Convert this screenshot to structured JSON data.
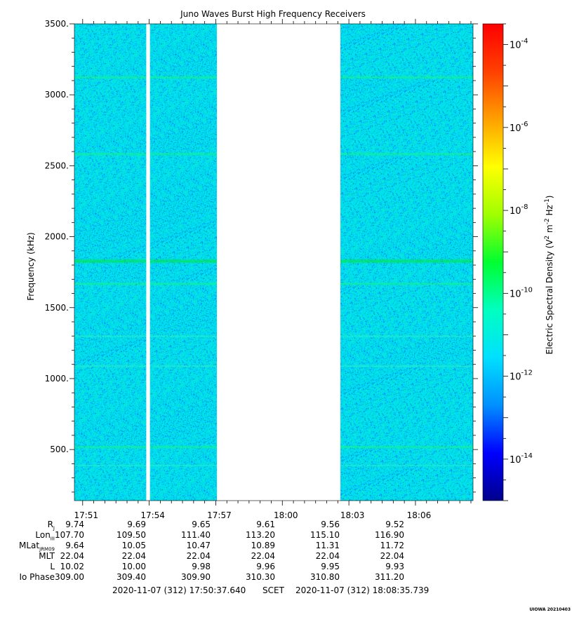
{
  "chart_data": {
    "type": "heatmap",
    "title": "Juno Waves Burst High Frequency Receivers",
    "ylabel": "Frequency (kHz)",
    "ylim": [
      140,
      3500
    ],
    "yticks": [
      "500.",
      "1000.",
      "1500.",
      "2000.",
      "2500.",
      "3000.",
      "3500."
    ],
    "ytick_values": [
      500,
      1000,
      1500,
      2000,
      2500,
      3000,
      3500
    ],
    "xlim": [
      "17:50:37.640",
      "18:08:35.739"
    ],
    "xticks": [
      "17:51",
      "17:54",
      "17:57",
      "18:00",
      "18:03",
      "18:06"
    ],
    "data_gaps": [
      [
        "17:53:52",
        "17:54:02"
      ],
      [
        "17:57:03",
        "18:02:37"
      ]
    ],
    "background_level": "1e-12",
    "emission_lines": [
      {
        "frequency_khz": 3125,
        "level": "enhanced"
      },
      {
        "frequency_khz": 2585,
        "level": "enhanced"
      },
      {
        "frequency_khz": 1830,
        "level": "strong"
      },
      {
        "frequency_khz": 1670,
        "level": "enhanced"
      },
      {
        "frequency_khz": 1300,
        "level": "weak"
      },
      {
        "frequency_khz": 1090,
        "level": "weak"
      },
      {
        "frequency_khz": 520,
        "level": "enhanced"
      },
      {
        "frequency_khz": 390,
        "level": "weak"
      }
    ],
    "colorbar": {
      "label_parts": [
        "Electric Spectral Density (V",
        "2",
        " m",
        "-2",
        " Hz",
        "-1",
        ")"
      ],
      "tick_base": "10",
      "tick_exponents": [
        "-14",
        "-12",
        "-10",
        "-8",
        "-6",
        "-4"
      ],
      "range_exponent": [
        -15,
        -3.5
      ],
      "colors": [
        "#00008b",
        "#0000ff",
        "#0090ff",
        "#00e0ff",
        "#00ffc0",
        "#00ff30",
        "#a0ff00",
        "#ffff00",
        "#ffa000",
        "#ff4000",
        "#ff0000"
      ]
    }
  },
  "ephemeris": {
    "rows": [
      {
        "label": "R",
        "sub": "J",
        "values": [
          "9.74",
          "9.69",
          "9.65",
          "9.61",
          "9.56",
          "9.52"
        ]
      },
      {
        "label": "Lon",
        "sub": "III",
        "values": [
          "107.70",
          "109.50",
          "111.40",
          "113.20",
          "115.10",
          "116.90"
        ]
      },
      {
        "label": "MLat",
        "sub": "JRM09",
        "values": [
          "9.64",
          "10.05",
          "10.47",
          "10.89",
          "11.31",
          "11.72"
        ]
      },
      {
        "label": "MLT",
        "sub": "",
        "values": [
          "22.04",
          "22.04",
          "22.04",
          "22.04",
          "22.04",
          "22.04"
        ]
      },
      {
        "label": "L",
        "sub": "",
        "values": [
          "10.02",
          "10.00",
          "9.98",
          "9.96",
          "9.95",
          "9.93"
        ]
      },
      {
        "label": "Io Phase",
        "sub": "",
        "values": [
          "309.00",
          "309.40",
          "309.90",
          "310.30",
          "310.80",
          "311.20"
        ]
      }
    ]
  },
  "footer": {
    "start": "2020-11-07 (312) 17:50:37.640",
    "scet": "SCET",
    "end": "2020-11-07 (312) 18:08:35.739"
  },
  "credit": "UIOWA 20210403"
}
